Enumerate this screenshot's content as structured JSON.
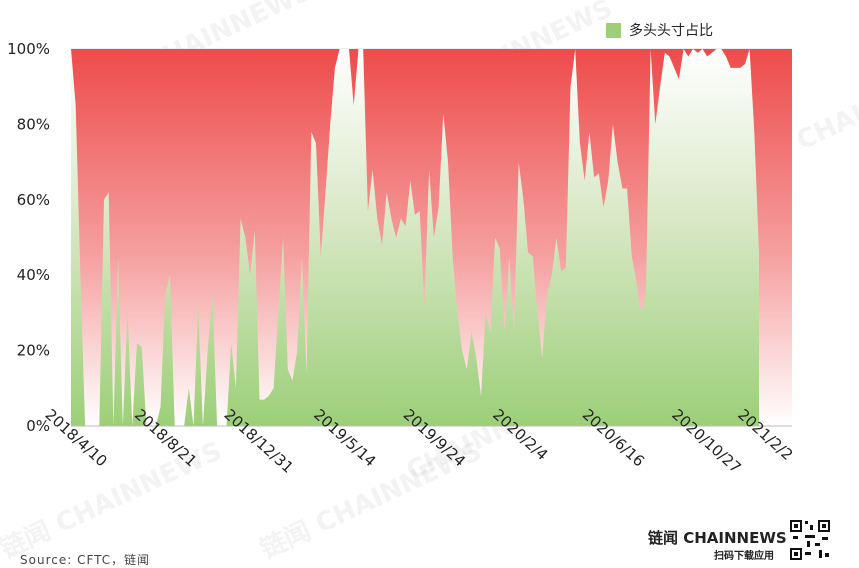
{
  "title": "",
  "legend": {
    "series_name": "多头头寸占比",
    "color": "#9ccf78"
  },
  "source": "Source: CFTC，链闻",
  "brand": {
    "name": "链闻 CHAINNEWS",
    "tagline": "扫码下载应用"
  },
  "watermarks": [
    "链闻 CHAINNEWS",
    "链闻 CHAINNEWS",
    "链闻 CHAINNEWS",
    "CHAINNEWS",
    "CHAINNEWS",
    "CHAINNEWS"
  ],
  "chart_data": {
    "type": "area",
    "title": "",
    "xlabel": "",
    "ylabel": "",
    "ylim": [
      0,
      100
    ],
    "y_ticks": [
      "0%",
      "20%",
      "40%",
      "60%",
      "80%",
      "100%"
    ],
    "x_tick_labels": [
      "2018/4/10",
      "2018/8/21",
      "2018/12/31",
      "2019/5/14",
      "2019/9/24",
      "2020/2/4",
      "2020/6/16",
      "2020/10/27",
      "2021/2/2"
    ],
    "x_tick_weeks": [
      0,
      19,
      38,
      57,
      76,
      95,
      114,
      133,
      147
    ],
    "x_range_weeks": [
      0,
      153
    ],
    "grid": "horizontal",
    "legend_position": "top-right",
    "colors": {
      "long": "#9ccf78",
      "short": "#f06060"
    },
    "series": [
      {
        "name": "多头头寸占比",
        "values": [
          100,
          85,
          40,
          0,
          0,
          0,
          0,
          60,
          62,
          0,
          45,
          0,
          30,
          0,
          22,
          21,
          0,
          0,
          0,
          5,
          35,
          40,
          0,
          0,
          0,
          10,
          0,
          32,
          0,
          20,
          35,
          0,
          0,
          0,
          22,
          10,
          55,
          50,
          40,
          52,
          7,
          7,
          8,
          10,
          30,
          50,
          15,
          12,
          20,
          45,
          14,
          78,
          75,
          45,
          62,
          80,
          95,
          100,
          100,
          100,
          85,
          100,
          100,
          57,
          68,
          55,
          48,
          62,
          55,
          50,
          55,
          53,
          65,
          56,
          57,
          32,
          68,
          50,
          58,
          83,
          70,
          45,
          30,
          20,
          15,
          25,
          18,
          8,
          30,
          25,
          50,
          47,
          25,
          45,
          25,
          70,
          60,
          46,
          45,
          30,
          18,
          35,
          40,
          50,
          41,
          42,
          90,
          100,
          75,
          65,
          78,
          66,
          67,
          58,
          65,
          80,
          70,
          63,
          63,
          45,
          38,
          30,
          35,
          100,
          80,
          90,
          99,
          98,
          95,
          92,
          100,
          98,
          100,
          99,
          100,
          98,
          99,
          100,
          100,
          98,
          95,
          95,
          95,
          96,
          100,
          78,
          46
        ]
      }
    ]
  }
}
